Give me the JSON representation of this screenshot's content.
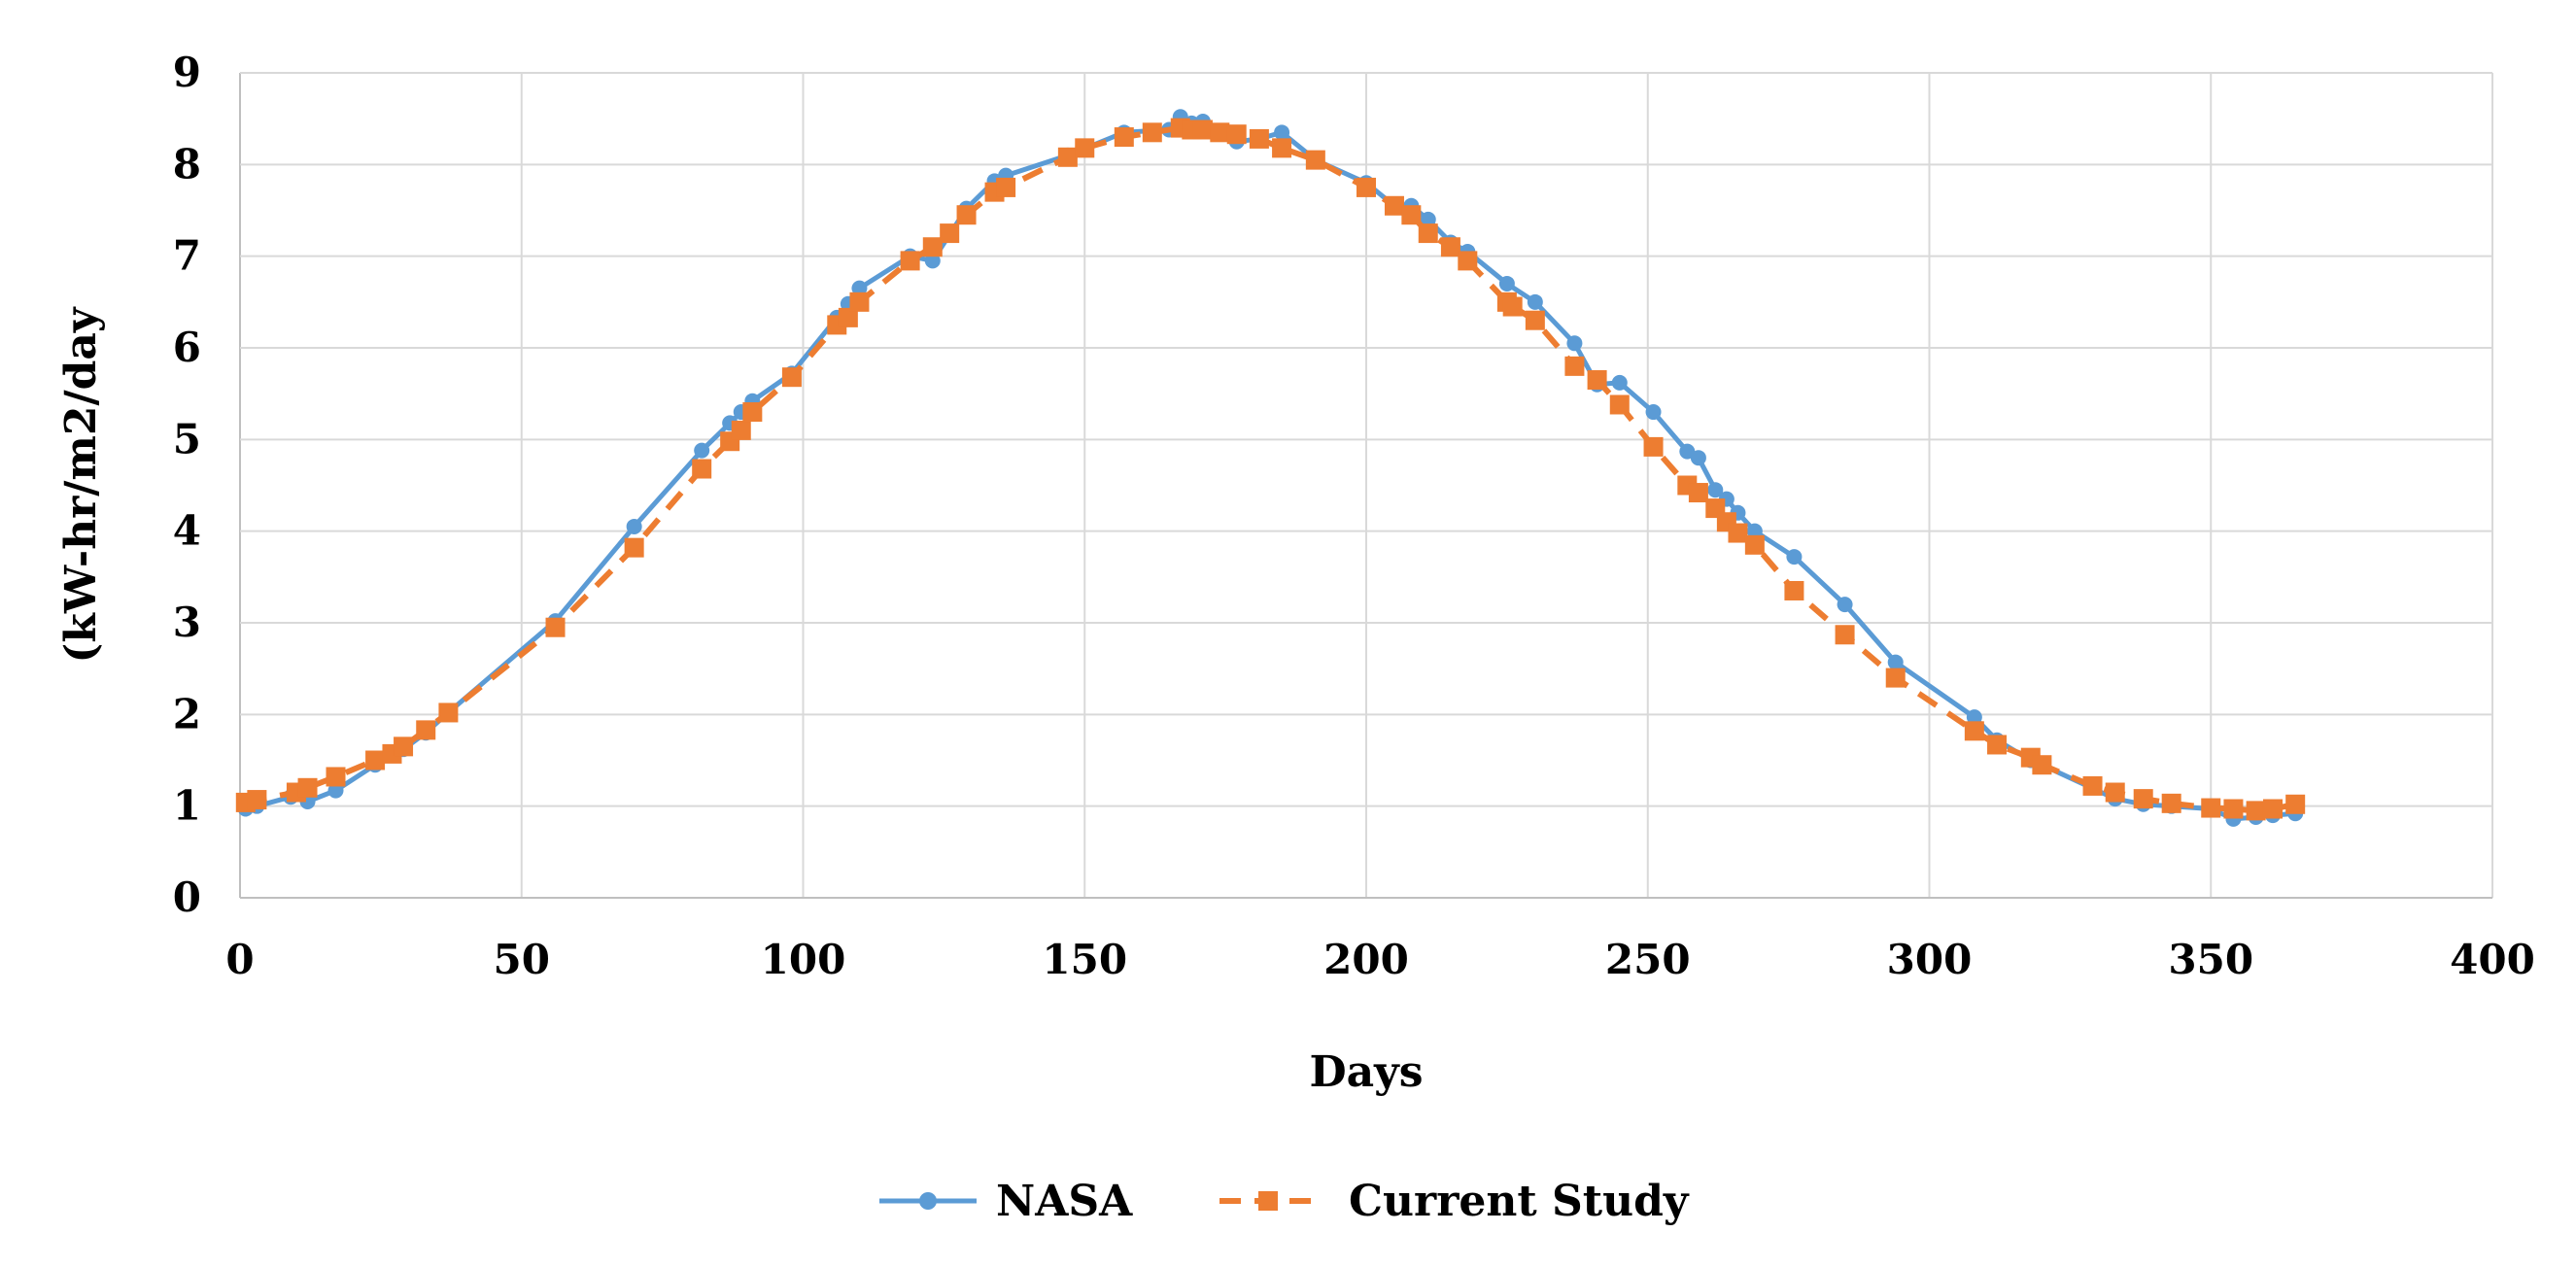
{
  "chart_data": {
    "type": "line",
    "title": "",
    "xlabel": "Days",
    "ylabel": "(kW-hr/m2/day",
    "xlim": [
      0,
      400
    ],
    "ylim": [
      0,
      9
    ],
    "xticks": [
      0,
      50,
      100,
      150,
      200,
      250,
      300,
      350,
      400
    ],
    "yticks": [
      0,
      1,
      2,
      3,
      4,
      5,
      6,
      7,
      8,
      9
    ],
    "grid": true,
    "legend_position": "bottom-center",
    "series": [
      {
        "name": "NASA",
        "color": "#5b9bd5",
        "line_style": "solid",
        "marker": "circle",
        "x": [
          1,
          3,
          9,
          12,
          17,
          24,
          29,
          33,
          37,
          56,
          70,
          82,
          87,
          89,
          91,
          98,
          106,
          108,
          110,
          119,
          123,
          129,
          134,
          136,
          147,
          157,
          165,
          167,
          169,
          171,
          174,
          177,
          181,
          185,
          191,
          200,
          205,
          208,
          211,
          215,
          218,
          225,
          230,
          237,
          241,
          245,
          251,
          257,
          259,
          262,
          264,
          266,
          269,
          276,
          285,
          294,
          308,
          312,
          318,
          320,
          333,
          338,
          343,
          350,
          354,
          358,
          361,
          365
        ],
        "values": [
          0.97,
          1.0,
          1.1,
          1.05,
          1.17,
          1.45,
          1.62,
          1.8,
          2.02,
          3.02,
          4.05,
          4.88,
          5.18,
          5.3,
          5.42,
          5.72,
          6.33,
          6.48,
          6.65,
          7.0,
          6.95,
          7.52,
          7.82,
          7.88,
          8.1,
          8.35,
          8.38,
          8.52,
          8.45,
          8.47,
          8.35,
          8.25,
          8.28,
          8.35,
          8.05,
          7.8,
          7.55,
          7.55,
          7.4,
          7.15,
          7.05,
          6.7,
          6.5,
          6.05,
          5.6,
          5.62,
          5.3,
          4.87,
          4.8,
          4.45,
          4.35,
          4.2,
          4.0,
          3.72,
          3.2,
          2.57,
          1.97,
          1.72,
          1.5,
          1.45,
          1.08,
          1.02,
          1.0,
          0.97,
          0.86,
          0.88,
          0.9,
          0.92
        ]
      },
      {
        "name": "Current Study",
        "color": "#ed7d31",
        "line_style": "dashed",
        "marker": "square",
        "x": [
          1,
          3,
          10,
          12,
          17,
          24,
          27,
          29,
          33,
          37,
          56,
          70,
          82,
          87,
          89,
          91,
          98,
          106,
          108,
          110,
          119,
          123,
          126,
          129,
          134,
          136,
          147,
          150,
          157,
          162,
          167,
          169,
          171,
          174,
          177,
          181,
          185,
          191,
          200,
          205,
          208,
          211,
          215,
          218,
          225,
          226,
          230,
          237,
          241,
          245,
          251,
          257,
          259,
          262,
          264,
          266,
          269,
          276,
          285,
          294,
          308,
          312,
          318,
          320,
          329,
          333,
          338,
          343,
          350,
          354,
          358,
          361,
          365
        ],
        "values": [
          1.04,
          1.07,
          1.15,
          1.2,
          1.32,
          1.5,
          1.57,
          1.65,
          1.83,
          2.02,
          2.95,
          3.82,
          4.68,
          4.98,
          5.1,
          5.3,
          5.68,
          6.25,
          6.33,
          6.5,
          6.95,
          7.1,
          7.25,
          7.45,
          7.7,
          7.75,
          8.08,
          8.18,
          8.3,
          8.35,
          8.4,
          8.38,
          8.38,
          8.35,
          8.33,
          8.28,
          8.18,
          8.05,
          7.75,
          7.55,
          7.45,
          7.25,
          7.1,
          6.95,
          6.5,
          6.45,
          6.3,
          5.8,
          5.65,
          5.38,
          4.92,
          4.5,
          4.42,
          4.25,
          4.1,
          3.98,
          3.85,
          3.35,
          2.87,
          2.4,
          1.82,
          1.67,
          1.53,
          1.45,
          1.22,
          1.15,
          1.08,
          1.03,
          0.98,
          0.97,
          0.95,
          0.97,
          1.02
        ]
      }
    ]
  }
}
